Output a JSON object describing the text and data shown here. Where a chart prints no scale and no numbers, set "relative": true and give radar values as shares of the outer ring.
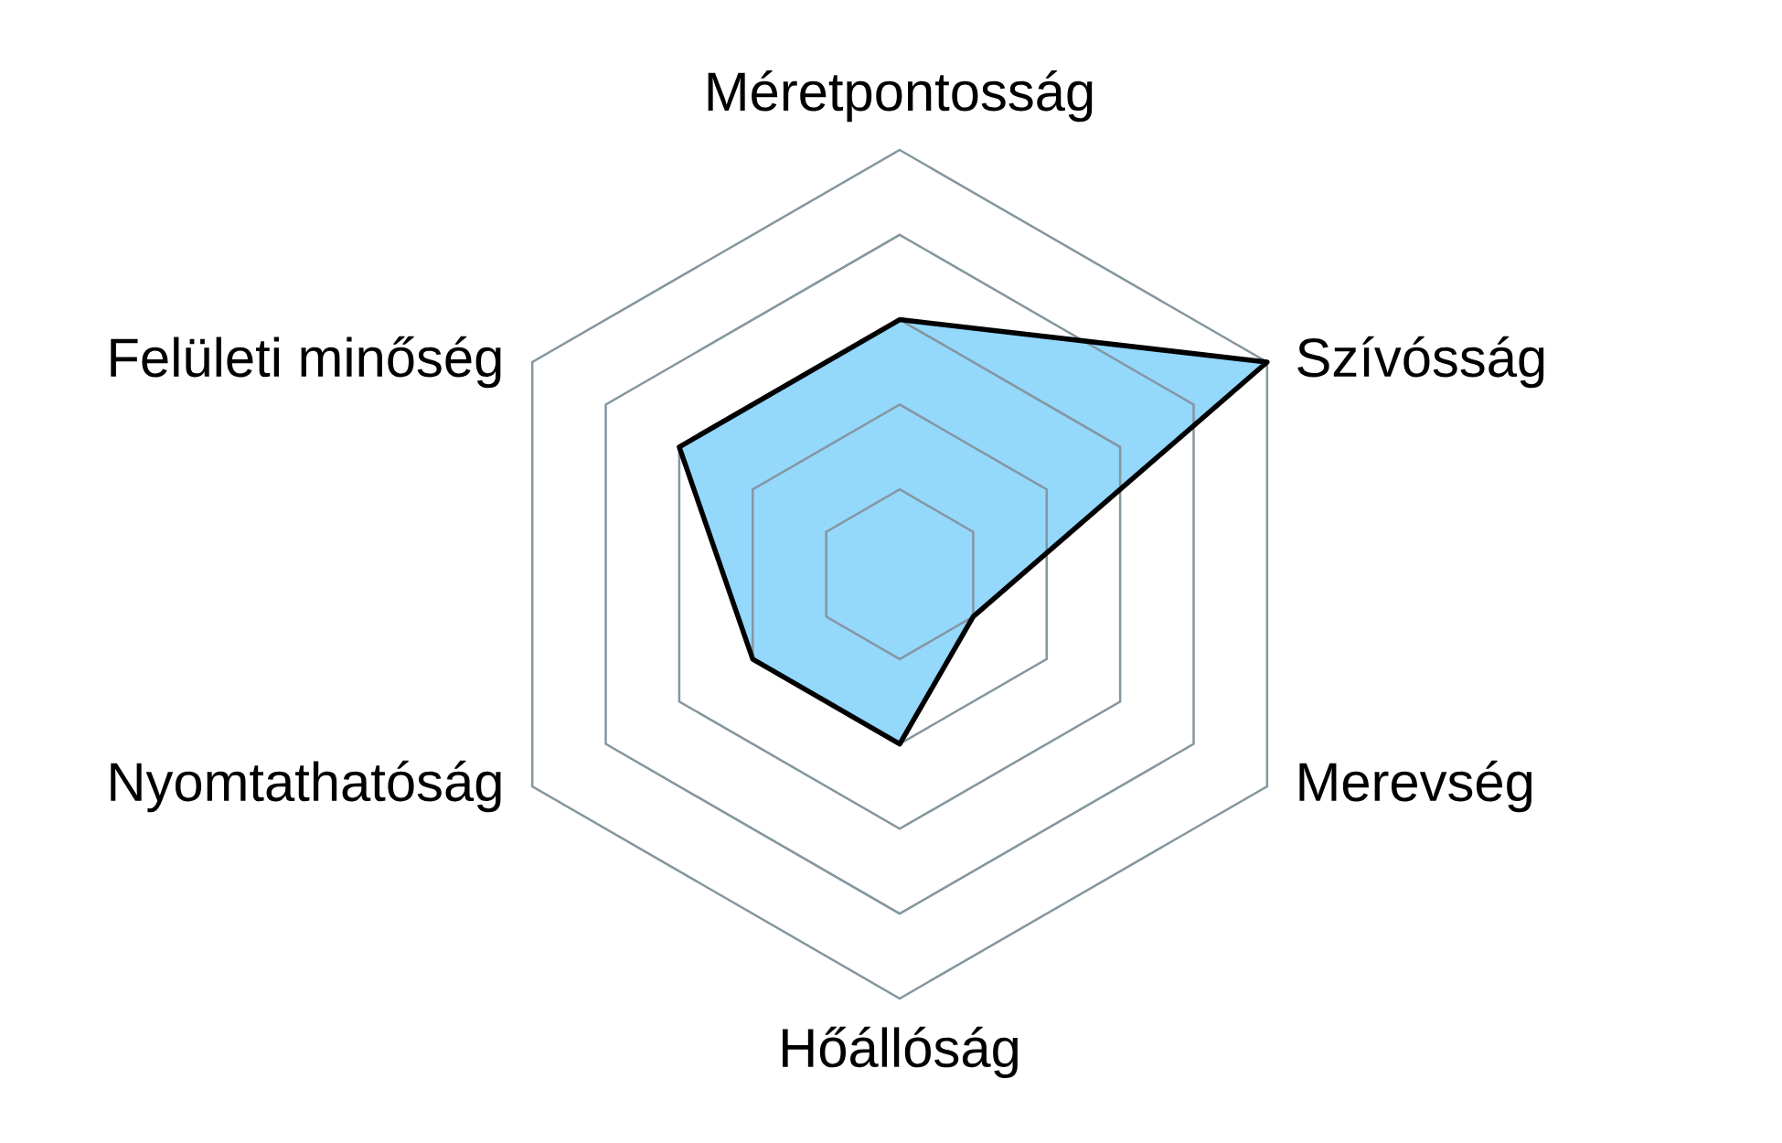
{
  "chart_data": {
    "type": "radar",
    "relative": true,
    "grid": true,
    "categories": [
      "Méretpontosság",
      "Szívósság",
      "Merevség",
      "Hőállóság",
      "Nyomtathatóság",
      "Felületi minőség"
    ],
    "series": [
      {
        "color": "#94d8fc",
        "values": [
          0.6,
          1,
          0.2,
          0.4,
          0.4,
          0.6
        ]
      }
    ]
  }
}
